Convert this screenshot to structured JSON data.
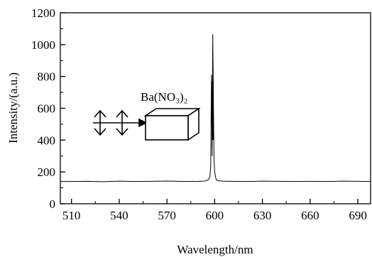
{
  "chart_data": {
    "type": "line",
    "title": "",
    "xlabel": "Wavelength/nm",
    "ylabel": "Intensity/(a.u.)",
    "xlim": [
      503,
      698
    ],
    "ylim": [
      0,
      1200
    ],
    "x_ticks": [
      510,
      540,
      570,
      600,
      630,
      660,
      690
    ],
    "y_ticks": [
      0,
      200,
      400,
      600,
      800,
      1000,
      1200
    ],
    "grid": false,
    "legend": "none",
    "line_color": "#000000",
    "inset_label": "Ba(NO₃)₂",
    "series": [
      {
        "x": [
          503,
          510,
          520,
          530,
          540,
          550,
          560,
          570,
          580,
          590,
          594,
          596,
          597,
          597.5,
          598,
          598.4,
          598.8,
          599.2,
          599.6,
          600,
          600.5,
          601,
          602,
          605,
          610,
          620,
          630,
          640,
          650,
          660,
          670,
          680,
          690,
          698
        ],
        "values": [
          140,
          140,
          141,
          139,
          142,
          140,
          141,
          143,
          140,
          141,
          143,
          150,
          170,
          230,
          810,
          300,
          1065,
          640,
          280,
          200,
          170,
          152,
          145,
          142,
          141,
          140,
          142,
          141,
          140,
          141,
          140,
          142,
          141,
          140
        ]
      }
    ]
  }
}
